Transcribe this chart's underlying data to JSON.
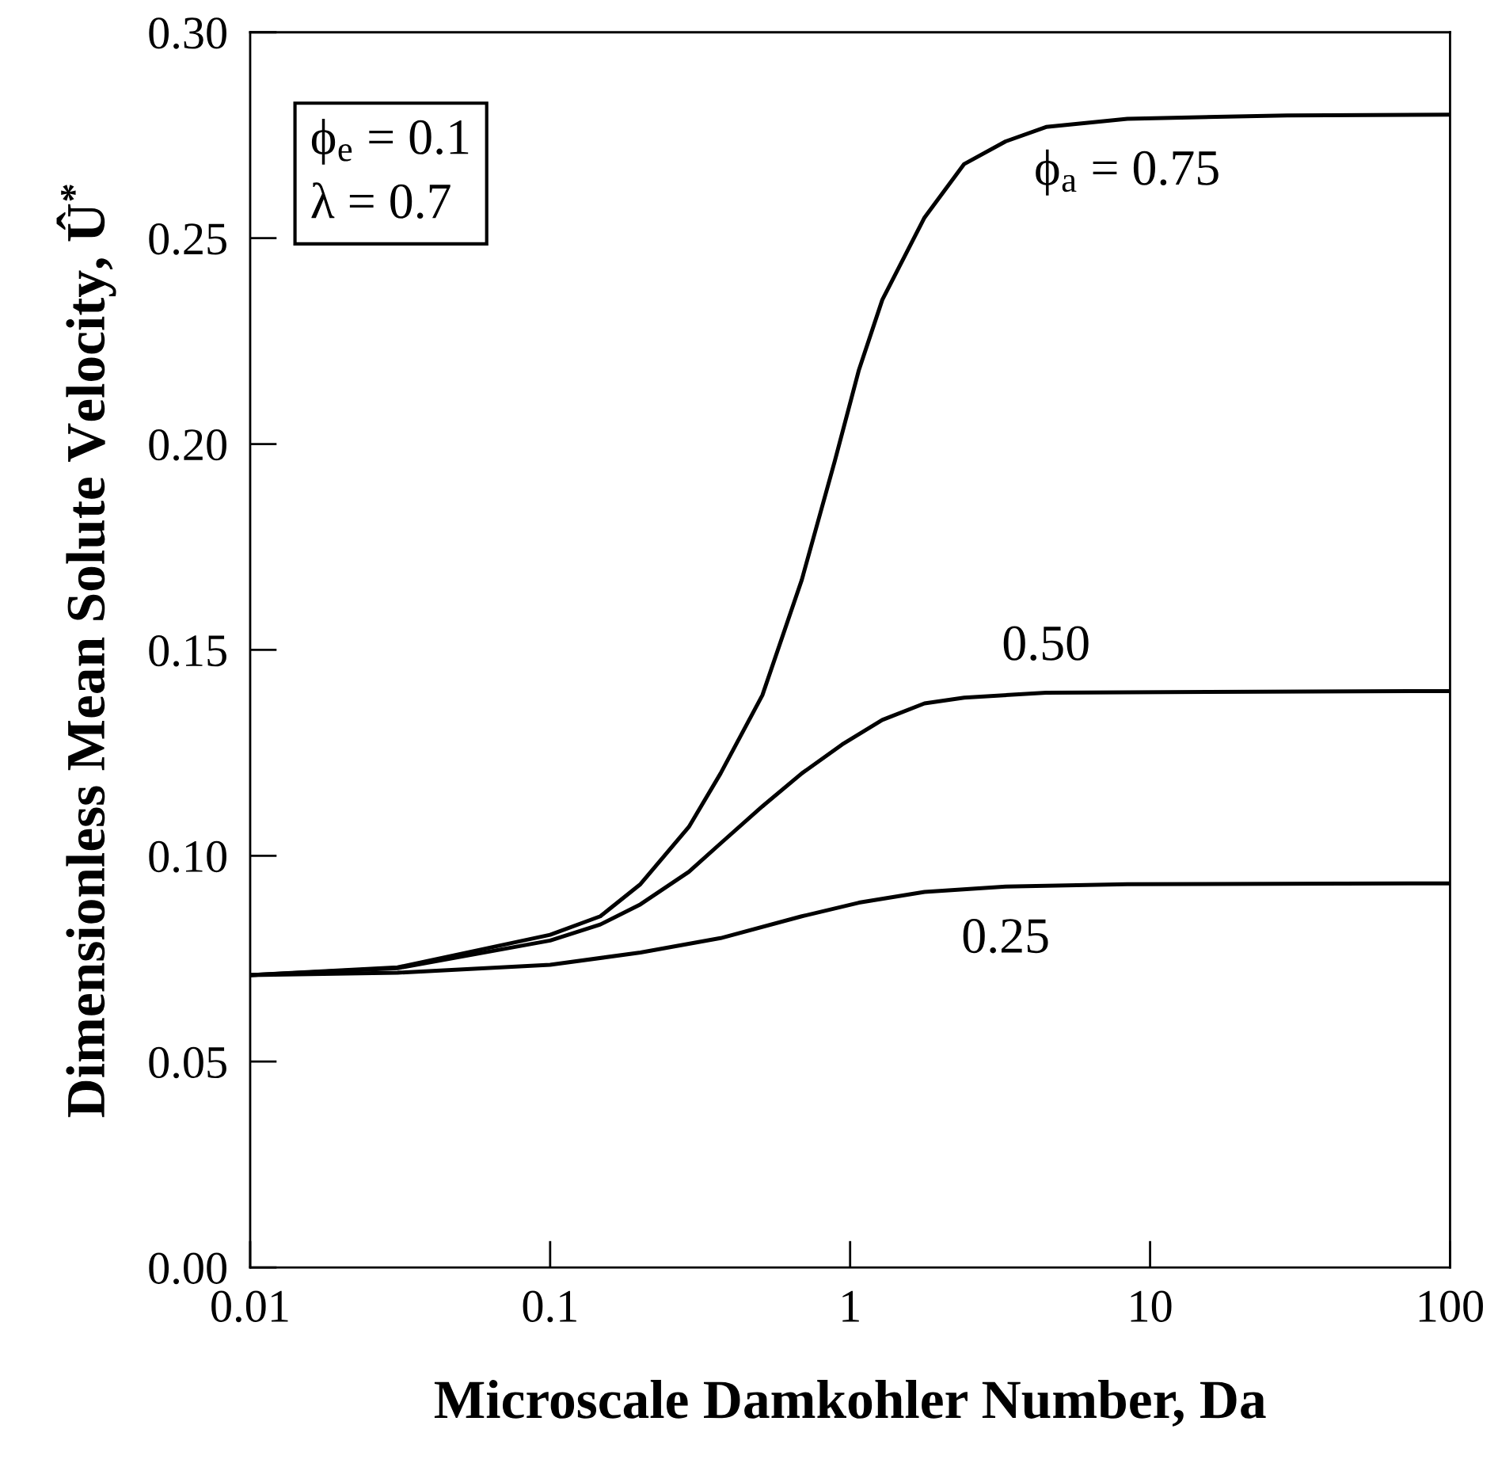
{
  "chart_data": {
    "type": "line",
    "xlabel": "Microscale Damkohler Number, Da",
    "ylabel": "Dimensionless Mean Solute Velocity, Û$^{*}$",
    "log": "x",
    "xlim": [
      0.01,
      100
    ],
    "xticks": [
      0.01,
      0.1,
      1,
      10,
      100
    ],
    "ylim": [
      0,
      0.3
    ],
    "yticks": [
      {
        "value": 0,
        "label": "0.00"
      },
      {
        "value": 0.05,
        "label": "0.05"
      },
      {
        "value": 0.1,
        "label": "0.10"
      },
      {
        "value": 0.15,
        "label": "0.15"
      },
      {
        "value": 0.2,
        "label": "0.20"
      },
      {
        "value": 0.25,
        "label": "0.25"
      },
      {
        "value": 0.3,
        "label": "0.30"
      }
    ],
    "grid": false,
    "legend": false,
    "marker": "none",
    "line_style": "solid",
    "annotations": [
      "ϕ$_{e}$ = 0.1\nλ = 0.7"
    ],
    "series": [
      {
        "name": "ϕ$_{a}$ = 0.75",
        "color": "#000000",
        "x": [
          0.01,
          0.031,
          0.1,
          0.147,
          0.2,
          0.29,
          0.37,
          0.51,
          0.69,
          0.89,
          1.07,
          1.28,
          1.77,
          2.4,
          3.3,
          4.5,
          8.4,
          28.6,
          100
        ],
        "values": [
          0.071,
          0.0729,
          0.0808,
          0.0853,
          0.0931,
          0.107,
          0.12,
          0.139,
          0.167,
          0.196,
          0.218,
          0.235,
          0.255,
          0.268,
          0.2735,
          0.277,
          0.279,
          0.2798,
          0.28
        ]
      },
      {
        "name": "0.50",
        "color": "#000000",
        "x": [
          0.01,
          0.031,
          0.1,
          0.147,
          0.2,
          0.29,
          0.37,
          0.51,
          0.69,
          0.94,
          1.28,
          1.77,
          2.4,
          4.5,
          15.6,
          100
        ],
        "values": [
          0.071,
          0.0727,
          0.0794,
          0.0833,
          0.0882,
          0.0961,
          0.103,
          0.112,
          0.12,
          0.127,
          0.133,
          0.137,
          0.1384,
          0.1396,
          0.1398,
          0.14
        ]
      },
      {
        "name": "0.25",
        "color": "#000000",
        "x": [
          0.01,
          0.031,
          0.1,
          0.2,
          0.37,
          0.69,
          1.07,
          1.77,
          3.3,
          8.4,
          100
        ],
        "values": [
          0.071,
          0.0716,
          0.0735,
          0.0765,
          0.08,
          0.0853,
          0.0886,
          0.0912,
          0.0925,
          0.0931,
          0.0933
        ]
      }
    ]
  }
}
